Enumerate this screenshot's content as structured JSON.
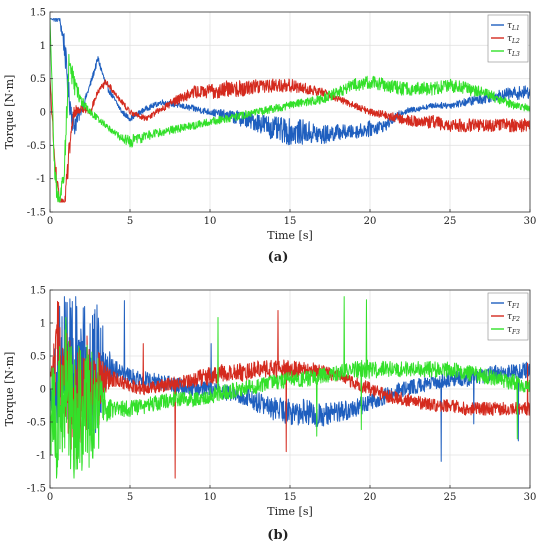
{
  "chart_data": [
    {
      "type": "line",
      "panel_label": "(a)",
      "xlabel": "Time [s]",
      "ylabel": "Torque [N·m]",
      "xlim": [
        0,
        30
      ],
      "ylim": [
        -1.5,
        1.5
      ],
      "xticks": [
        0,
        5,
        10,
        15,
        20,
        25,
        30
      ],
      "yticks": [
        -1.5,
        -1,
        -0.5,
        0,
        0.5,
        1,
        1.5
      ],
      "x_tick_labels": [
        "0",
        "5",
        "10",
        "15",
        "20",
        "25",
        "30"
      ],
      "y_tick_labels": [
        "-1.5",
        "-1",
        "-0.5",
        "0",
        "0.5",
        "1",
        "1.5"
      ],
      "grid": true,
      "legend_position": "top-right",
      "series": [
        {
          "name": "τ",
          "name_sub": "L1",
          "color": "#1f5fbf",
          "x": [
            0,
            0.3,
            0.6,
            0.9,
            1.2,
            1.5,
            2.0,
            2.5,
            3.0,
            3.5,
            4.0,
            4.5,
            5.0,
            6.0,
            7.0,
            8.0,
            9.0,
            10.0,
            11.0,
            12.0,
            13.0,
            14.0,
            15.0,
            16.0,
            17.0,
            18.0,
            19.0,
            20.0,
            21.0,
            22.0,
            23.0,
            24.0,
            25.0,
            26.0,
            27.0,
            28.0,
            29.0,
            30.0
          ],
          "y": [
            1.4,
            1.4,
            1.4,
            1.0,
            0.2,
            -0.2,
            0.05,
            0.4,
            0.8,
            0.4,
            0.2,
            0.0,
            -0.1,
            0.05,
            0.15,
            0.1,
            0.05,
            0.0,
            -0.05,
            -0.1,
            -0.15,
            -0.25,
            -0.3,
            -0.3,
            -0.35,
            -0.3,
            -0.3,
            -0.25,
            -0.2,
            0.0,
            0.05,
            0.1,
            0.1,
            0.15,
            0.2,
            0.25,
            0.28,
            0.3
          ],
          "noise": [
            0,
            0.05,
            0.05,
            0.2,
            0.2,
            0.2,
            0.05,
            0.05,
            0.05,
            0.05,
            0.04,
            0.04,
            0.04,
            0.04,
            0.04,
            0.04,
            0.05,
            0.05,
            0.08,
            0.12,
            0.15,
            0.18,
            0.2,
            0.18,
            0.15,
            0.12,
            0.1,
            0.12,
            0.08,
            0.05,
            0.04,
            0.04,
            0.05,
            0.06,
            0.08,
            0.08,
            0.1,
            0.1
          ]
        },
        {
          "name": "τ",
          "name_sub": "L2",
          "color": "#d42a1e",
          "x": [
            0,
            0.3,
            0.6,
            0.9,
            1.2,
            1.5,
            2.0,
            2.5,
            3.0,
            3.5,
            4.0,
            4.5,
            5.0,
            6.0,
            7.0,
            8.0,
            9.0,
            10.0,
            11.0,
            12.0,
            13.0,
            14.0,
            15.0,
            16.0,
            17.0,
            18.0,
            19.0,
            20.0,
            21.0,
            22.0,
            23.0,
            24.0,
            25.0,
            26.0,
            27.0,
            28.0,
            29.0,
            30.0
          ],
          "y": [
            0.5,
            -0.8,
            -1.4,
            -1.4,
            -0.6,
            0.0,
            0.05,
            0.0,
            0.3,
            0.45,
            0.3,
            0.15,
            0.0,
            -0.1,
            0.05,
            0.2,
            0.3,
            0.3,
            0.35,
            0.35,
            0.4,
            0.4,
            0.4,
            0.35,
            0.3,
            0.2,
            0.1,
            0.0,
            -0.05,
            -0.1,
            -0.15,
            -0.15,
            -0.2,
            -0.2,
            -0.2,
            -0.2,
            -0.2,
            -0.2
          ],
          "noise": [
            0,
            0.2,
            0.1,
            0.1,
            0.2,
            0.1,
            0.05,
            0.05,
            0.05,
            0.05,
            0.04,
            0.04,
            0.04,
            0.04,
            0.05,
            0.08,
            0.1,
            0.12,
            0.12,
            0.12,
            0.12,
            0.1,
            0.1,
            0.08,
            0.06,
            0.05,
            0.05,
            0.05,
            0.06,
            0.08,
            0.08,
            0.1,
            0.1,
            0.1,
            0.1,
            0.1,
            0.1,
            0.1
          ]
        },
        {
          "name": "τ",
          "name_sub": "L3",
          "color": "#33e02a",
          "x": [
            0,
            0.3,
            0.6,
            0.9,
            1.2,
            1.5,
            2.0,
            2.5,
            3.0,
            3.5,
            4.0,
            4.5,
            5.0,
            6.0,
            7.0,
            8.0,
            9.0,
            10.0,
            11.0,
            12.0,
            13.0,
            14.0,
            15.0,
            16.0,
            17.0,
            18.0,
            19.0,
            20.0,
            21.0,
            22.0,
            23.0,
            24.0,
            25.0,
            26.0,
            27.0,
            28.0,
            29.0,
            30.0
          ],
          "y": [
            1.4,
            -1.0,
            -1.4,
            -0.8,
            0.8,
            0.4,
            0.15,
            0.0,
            -0.1,
            -0.2,
            -0.3,
            -0.4,
            -0.45,
            -0.35,
            -0.3,
            -0.25,
            -0.2,
            -0.15,
            -0.1,
            -0.05,
            0.0,
            0.05,
            0.1,
            0.15,
            0.2,
            0.3,
            0.4,
            0.45,
            0.4,
            0.35,
            0.35,
            0.35,
            0.4,
            0.35,
            0.3,
            0.2,
            0.1,
            0.05
          ],
          "noise": [
            0,
            0.2,
            0.1,
            0.2,
            0.2,
            0.15,
            0.08,
            0.05,
            0.05,
            0.05,
            0.05,
            0.06,
            0.1,
            0.08,
            0.06,
            0.06,
            0.06,
            0.06,
            0.06,
            0.06,
            0.06,
            0.06,
            0.06,
            0.06,
            0.08,
            0.08,
            0.1,
            0.1,
            0.1,
            0.1,
            0.1,
            0.1,
            0.1,
            0.1,
            0.08,
            0.08,
            0.06,
            0.06
          ]
        }
      ]
    },
    {
      "type": "line",
      "panel_label": "(b)",
      "xlabel": "Time [s]",
      "ylabel": "Torque [N·m]",
      "xlim": [
        0,
        30
      ],
      "ylim": [
        -1.5,
        1.5
      ],
      "xticks": [
        0,
        5,
        10,
        15,
        20,
        25,
        30
      ],
      "yticks": [
        -1.5,
        -1,
        -0.5,
        0,
        0.5,
        1,
        1.5
      ],
      "x_tick_labels": [
        "0",
        "5",
        "10",
        "15",
        "20",
        "25",
        "30"
      ],
      "y_tick_labels": [
        "-1.5",
        "-1",
        "-0.5",
        "0",
        "0.5",
        "1",
        "1.5"
      ],
      "grid": true,
      "legend_position": "top-right",
      "series": [
        {
          "name": "τ",
          "name_sub": "F1",
          "color": "#1f5fbf",
          "x": [
            0,
            0.5,
            1.0,
            1.5,
            2.0,
            2.5,
            3.0,
            3.5,
            4.0,
            4.5,
            5.0,
            6.0,
            7.0,
            8.0,
            9.0,
            10.0,
            11.0,
            12.0,
            13.0,
            14.0,
            15.0,
            16.0,
            17.0,
            18.0,
            19.0,
            20.0,
            21.0,
            22.0,
            23.0,
            24.0,
            25.0,
            26.0,
            27.0,
            28.0,
            29.0,
            30.0
          ],
          "y": [
            0.0,
            0.3,
            0.5,
            0.4,
            0.3,
            0.2,
            0.3,
            0.35,
            0.3,
            0.25,
            0.2,
            0.15,
            0.1,
            0.05,
            0.0,
            0.0,
            -0.05,
            -0.1,
            -0.2,
            -0.3,
            -0.35,
            -0.35,
            -0.4,
            -0.35,
            -0.3,
            -0.2,
            -0.1,
            0.0,
            0.05,
            0.1,
            0.15,
            0.15,
            0.2,
            0.25,
            0.25,
            0.3
          ],
          "noise": [
            0.3,
            1.0,
            1.0,
            1.0,
            1.0,
            1.0,
            1.0,
            0.4,
            0.15,
            0.12,
            0.12,
            0.12,
            0.12,
            0.12,
            0.12,
            0.12,
            0.12,
            0.14,
            0.16,
            0.18,
            0.2,
            0.2,
            0.18,
            0.16,
            0.14,
            0.14,
            0.12,
            0.12,
            0.12,
            0.12,
            0.12,
            0.12,
            0.12,
            0.12,
            0.12,
            0.12
          ]
        },
        {
          "name": "τ",
          "name_sub": "F2",
          "color": "#d42a1e",
          "x": [
            0,
            0.5,
            1.0,
            1.5,
            2.0,
            2.5,
            3.0,
            3.5,
            4.0,
            4.5,
            5.0,
            6.0,
            7.0,
            8.0,
            9.0,
            10.0,
            11.0,
            12.0,
            13.0,
            14.0,
            15.0,
            16.0,
            17.0,
            18.0,
            19.0,
            20.0,
            21.0,
            22.0,
            23.0,
            24.0,
            25.0,
            26.0,
            27.0,
            28.0,
            29.0,
            30.0
          ],
          "y": [
            0.0,
            0.5,
            0.2,
            -0.3,
            0.0,
            0.2,
            0.1,
            0.15,
            0.15,
            0.1,
            0.05,
            0.0,
            0.05,
            0.1,
            0.15,
            0.2,
            0.25,
            0.25,
            0.3,
            0.3,
            0.3,
            0.3,
            0.25,
            0.2,
            0.1,
            0.0,
            -0.1,
            -0.15,
            -0.2,
            -0.25,
            -0.25,
            -0.3,
            -0.3,
            -0.3,
            -0.3,
            -0.3
          ],
          "noise": [
            0.3,
            0.9,
            0.9,
            0.9,
            0.9,
            0.6,
            0.5,
            0.2,
            0.12,
            0.1,
            0.1,
            0.1,
            0.1,
            0.1,
            0.12,
            0.14,
            0.14,
            0.14,
            0.14,
            0.14,
            0.14,
            0.12,
            0.12,
            0.1,
            0.1,
            0.1,
            0.1,
            0.1,
            0.1,
            0.1,
            0.1,
            0.1,
            0.1,
            0.1,
            0.1,
            0.1
          ]
        },
        {
          "name": "τ",
          "name_sub": "F3",
          "color": "#33e02a",
          "x": [
            0,
            0.5,
            1.0,
            1.5,
            2.0,
            2.5,
            3.0,
            3.5,
            4.0,
            4.5,
            5.0,
            6.0,
            7.0,
            8.0,
            9.0,
            10.0,
            11.0,
            12.0,
            13.0,
            14.0,
            15.0,
            16.0,
            17.0,
            18.0,
            19.0,
            20.0,
            21.0,
            22.0,
            23.0,
            24.0,
            25.0,
            26.0,
            27.0,
            28.0,
            29.0,
            30.0
          ],
          "y": [
            -0.3,
            -0.5,
            0.0,
            -0.5,
            -0.3,
            -0.2,
            -0.25,
            -0.3,
            -0.3,
            -0.3,
            -0.3,
            -0.25,
            -0.2,
            -0.15,
            -0.15,
            -0.1,
            -0.05,
            0.0,
            0.05,
            0.1,
            0.15,
            0.15,
            0.2,
            0.25,
            0.3,
            0.3,
            0.3,
            0.3,
            0.3,
            0.3,
            0.3,
            0.25,
            0.2,
            0.15,
            0.1,
            0.05
          ],
          "noise": [
            0.6,
            1.1,
            1.1,
            1.1,
            1.1,
            1.0,
            0.8,
            0.2,
            0.12,
            0.12,
            0.12,
            0.12,
            0.12,
            0.12,
            0.12,
            0.12,
            0.12,
            0.12,
            0.12,
            0.12,
            0.12,
            0.12,
            0.12,
            0.12,
            0.14,
            0.14,
            0.12,
            0.12,
            0.12,
            0.12,
            0.12,
            0.12,
            0.12,
            0.12,
            0.12,
            0.12
          ]
        }
      ]
    }
  ]
}
